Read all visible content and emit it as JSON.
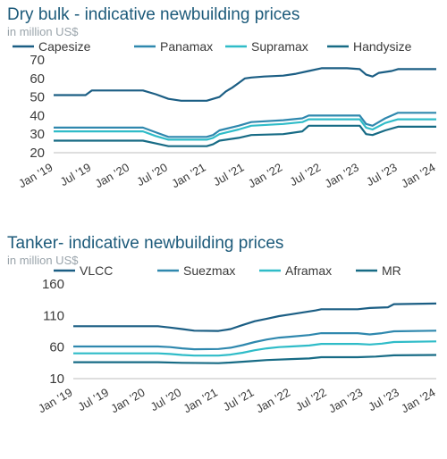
{
  "charts": [
    {
      "title": "Dry bulk - indicative newbuilding prices",
      "subtitle": "in million US$"
    },
    {
      "title": "Tanker- indicative newbuilding prices",
      "subtitle": "in million US$"
    }
  ],
  "chart_data": [
    {
      "type": "line",
      "title": "Dry bulk - indicative newbuilding prices",
      "subtitle": "in million US$",
      "xlabel": "",
      "ylabel": "",
      "x_ticks": [
        "Jan '19",
        "Jul '19",
        "Jan '20",
        "Jul '20",
        "Jan '21",
        "Jul '21",
        "Jan '22",
        "Jul '22",
        "Jan '23",
        "Jul '23",
        "Jan '24"
      ],
      "xlim": [
        "2019-01",
        "2024-01"
      ],
      "ylim": [
        20,
        70
      ],
      "y_ticks": [
        20,
        30,
        40,
        50,
        60,
        70
      ],
      "grid": false,
      "legend_position": "top",
      "series": [
        {
          "name": "Capesize",
          "color": "#1b5e84",
          "points": [
            [
              "2019-01",
              51
            ],
            [
              "2019-06",
              51
            ],
            [
              "2019-07",
              53.5
            ],
            [
              "2020-03",
              53.5
            ],
            [
              "2020-05",
              51.5
            ],
            [
              "2020-07",
              49
            ],
            [
              "2020-09",
              48
            ],
            [
              "2021-01",
              48
            ],
            [
              "2021-03",
              50
            ],
            [
              "2021-04",
              53
            ],
            [
              "2021-05",
              55
            ],
            [
              "2021-06",
              57.5
            ],
            [
              "2021-07",
              60
            ],
            [
              "2021-08",
              60.5
            ],
            [
              "2021-10",
              61
            ],
            [
              "2022-01",
              61.5
            ],
            [
              "2022-03",
              62.5
            ],
            [
              "2022-05",
              64
            ],
            [
              "2022-07",
              65.5
            ],
            [
              "2022-11",
              65.5
            ],
            [
              "2023-01",
              65
            ],
            [
              "2023-02",
              62
            ],
            [
              "2023-03",
              61
            ],
            [
              "2023-04",
              63
            ],
            [
              "2023-06",
              64
            ],
            [
              "2023-07",
              65
            ],
            [
              "2024-01",
              65
            ]
          ]
        },
        {
          "name": "Panamax",
          "color": "#2f88ae",
          "points": [
            [
              "2019-01",
              33.5
            ],
            [
              "2020-03",
              33.5
            ],
            [
              "2020-05",
              31
            ],
            [
              "2020-07",
              28.5
            ],
            [
              "2021-01",
              28.5
            ],
            [
              "2021-02",
              29.5
            ],
            [
              "2021-03",
              32
            ],
            [
              "2021-06",
              34.5
            ],
            [
              "2021-08",
              36.5
            ],
            [
              "2022-01",
              37.5
            ],
            [
              "2022-04",
              38.5
            ],
            [
              "2022-05",
              40
            ],
            [
              "2023-01",
              40
            ],
            [
              "2023-02",
              35.5
            ],
            [
              "2023-03",
              34.5
            ],
            [
              "2023-05",
              38.5
            ],
            [
              "2023-07",
              41.5
            ],
            [
              "2024-01",
              41.5
            ]
          ]
        },
        {
          "name": "Supramax",
          "color": "#2fbcc8",
          "points": [
            [
              "2019-01",
              31.5
            ],
            [
              "2020-03",
              31.5
            ],
            [
              "2020-05",
              29
            ],
            [
              "2020-07",
              27
            ],
            [
              "2021-01",
              27
            ],
            [
              "2021-02",
              28
            ],
            [
              "2021-03",
              30
            ],
            [
              "2021-06",
              32.5
            ],
            [
              "2021-08",
              34.5
            ],
            [
              "2022-01",
              35.5
            ],
            [
              "2022-04",
              36.5
            ],
            [
              "2022-05",
              38
            ],
            [
              "2023-01",
              38
            ],
            [
              "2023-02",
              33.5
            ],
            [
              "2023-03",
              32.5
            ],
            [
              "2023-05",
              36
            ],
            [
              "2023-07",
              38
            ],
            [
              "2024-01",
              38
            ]
          ]
        },
        {
          "name": "Handysize",
          "color": "#176b85",
          "points": [
            [
              "2019-01",
              26.5
            ],
            [
              "2020-03",
              26.5
            ],
            [
              "2020-05",
              25
            ],
            [
              "2020-07",
              23.5
            ],
            [
              "2021-01",
              23.5
            ],
            [
              "2021-02",
              24.5
            ],
            [
              "2021-03",
              26.5
            ],
            [
              "2021-06",
              28
            ],
            [
              "2021-08",
              29.5
            ],
            [
              "2022-01",
              30
            ],
            [
              "2022-04",
              31.5
            ],
            [
              "2022-05",
              34.5
            ],
            [
              "2023-01",
              34.5
            ],
            [
              "2023-02",
              30
            ],
            [
              "2023-03",
              29.5
            ],
            [
              "2023-05",
              32
            ],
            [
              "2023-07",
              34
            ],
            [
              "2024-01",
              34
            ]
          ]
        }
      ]
    },
    {
      "type": "line",
      "title": "Tanker- indicative newbuilding prices",
      "subtitle": "in million US$",
      "xlabel": "",
      "ylabel": "",
      "x_ticks": [
        "Jan '19",
        "Jul '19",
        "Jan '20",
        "Jul '20",
        "Jan '21",
        "Jul '21",
        "Jan '22",
        "Jul '22",
        "Jan '23",
        "Jul '23",
        "Jan '24"
      ],
      "xlim": [
        "2019-01",
        "2024-01"
      ],
      "ylim": [
        10,
        160
      ],
      "y_ticks": [
        10,
        60,
        110,
        160
      ],
      "grid": false,
      "legend_position": "top",
      "series": [
        {
          "name": "VLCC",
          "color": "#1b5e84",
          "points": [
            [
              "2019-01",
              93
            ],
            [
              "2020-03",
              93
            ],
            [
              "2020-05",
              91
            ],
            [
              "2020-07",
              88.5
            ],
            [
              "2020-09",
              86
            ],
            [
              "2021-01",
              85.5
            ],
            [
              "2021-03",
              88.5
            ],
            [
              "2021-05",
              95
            ],
            [
              "2021-07",
              101
            ],
            [
              "2021-09",
              105
            ],
            [
              "2021-11",
              109
            ],
            [
              "2022-01",
              112
            ],
            [
              "2022-03",
              115
            ],
            [
              "2022-05",
              118
            ],
            [
              "2022-06",
              120
            ],
            [
              "2022-12",
              120
            ],
            [
              "2023-02",
              122
            ],
            [
              "2023-05",
              123
            ],
            [
              "2023-06",
              128
            ],
            [
              "2024-01",
              129
            ]
          ]
        },
        {
          "name": "Suezmax",
          "color": "#2f88ae",
          "points": [
            [
              "2019-01",
              61
            ],
            [
              "2020-03",
              61
            ],
            [
              "2020-05",
              60
            ],
            [
              "2020-07",
              58
            ],
            [
              "2020-09",
              56.5
            ],
            [
              "2021-01",
              57
            ],
            [
              "2021-03",
              59
            ],
            [
              "2021-05",
              63
            ],
            [
              "2021-07",
              68
            ],
            [
              "2021-09",
              72
            ],
            [
              "2021-11",
              75
            ],
            [
              "2022-01",
              76.5
            ],
            [
              "2022-04",
              79
            ],
            [
              "2022-06",
              82
            ],
            [
              "2022-12",
              82
            ],
            [
              "2023-02",
              80
            ],
            [
              "2023-04",
              82
            ],
            [
              "2023-06",
              85
            ],
            [
              "2024-01",
              86
            ]
          ]
        },
        {
          "name": "Aframax",
          "color": "#2fbcc8",
          "points": [
            [
              "2019-01",
              50
            ],
            [
              "2020-03",
              50
            ],
            [
              "2020-05",
              49
            ],
            [
              "2020-07",
              47.5
            ],
            [
              "2020-09",
              46.5
            ],
            [
              "2021-01",
              46.5
            ],
            [
              "2021-03",
              48
            ],
            [
              "2021-05",
              51
            ],
            [
              "2021-07",
              55
            ],
            [
              "2021-09",
              58
            ],
            [
              "2021-11",
              60
            ],
            [
              "2022-01",
              61
            ],
            [
              "2022-04",
              62.5
            ],
            [
              "2022-06",
              65
            ],
            [
              "2022-12",
              65
            ],
            [
              "2023-02",
              64
            ],
            [
              "2023-04",
              65.5
            ],
            [
              "2023-06",
              68
            ],
            [
              "2024-01",
              69
            ]
          ]
        },
        {
          "name": "MR",
          "color": "#176b85",
          "points": [
            [
              "2019-01",
              36
            ],
            [
              "2020-03",
              36
            ],
            [
              "2020-07",
              35
            ],
            [
              "2021-01",
              34.5
            ],
            [
              "2021-03",
              35.5
            ],
            [
              "2021-06",
              37.5
            ],
            [
              "2021-09",
              39.5
            ],
            [
              "2022-01",
              41
            ],
            [
              "2022-04",
              42
            ],
            [
              "2022-06",
              44
            ],
            [
              "2022-12",
              44
            ],
            [
              "2023-03",
              45
            ],
            [
              "2023-06",
              47
            ],
            [
              "2024-01",
              47.5
            ]
          ]
        }
      ]
    }
  ]
}
